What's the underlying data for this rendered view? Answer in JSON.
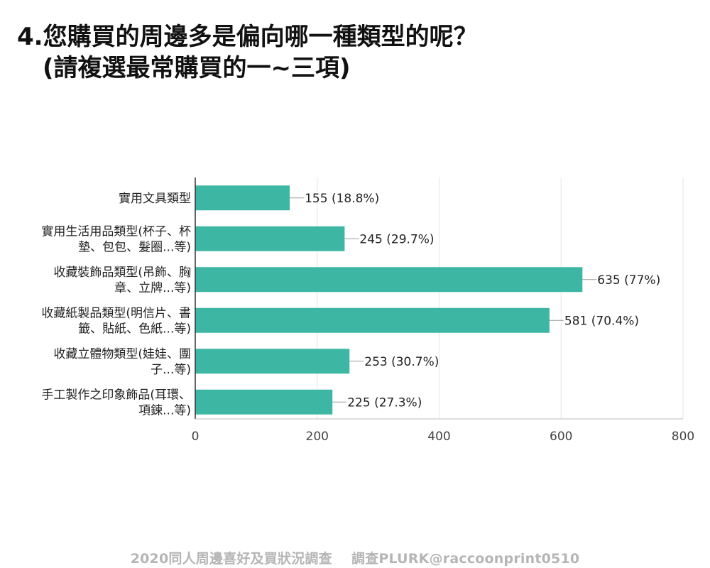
{
  "page": {
    "title_line1": "4.您購買的周邊多是偏向哪一種類型的呢？",
    "title_line2": "(請複選最常購買的一~三項)",
    "footer": "2020同人周邊喜好及買狀況調查    調查PLURK@raccoonprint0510"
  },
  "chart_data": {
    "type": "bar",
    "orientation": "horizontal",
    "categories": [
      [
        "實用文具類型"
      ],
      [
        "實用生活用品類型(杯子、杯",
        "墊、包包、髮圈...等)"
      ],
      [
        "收藏裝飾品類型(吊飾、胸",
        "章、立牌...等)"
      ],
      [
        "收藏紙製品類型(明信片、書",
        "籤、貼紙、色紙...等)"
      ],
      [
        "收藏立體物類型(娃娃、團",
        "子...等)"
      ],
      [
        "手工製作之印象飾品(耳環、",
        "項鍊...等)"
      ]
    ],
    "values": [
      155,
      245,
      635,
      581,
      253,
      225
    ],
    "value_labels": [
      "155 (18.8%)",
      "245 (29.7%)",
      "635 (77%)",
      "581 (70.4%)",
      "253 (30.7%)",
      "225 (27.3%)"
    ],
    "xlim": [
      0,
      800
    ],
    "xticks": [
      0,
      200,
      400,
      600,
      800
    ],
    "grid": true,
    "colors": {
      "bar": "#3db7a4",
      "grid": "#e6e6e6",
      "axis": "#333333",
      "leader": "#9a9a9a",
      "text": "#222222"
    }
  }
}
